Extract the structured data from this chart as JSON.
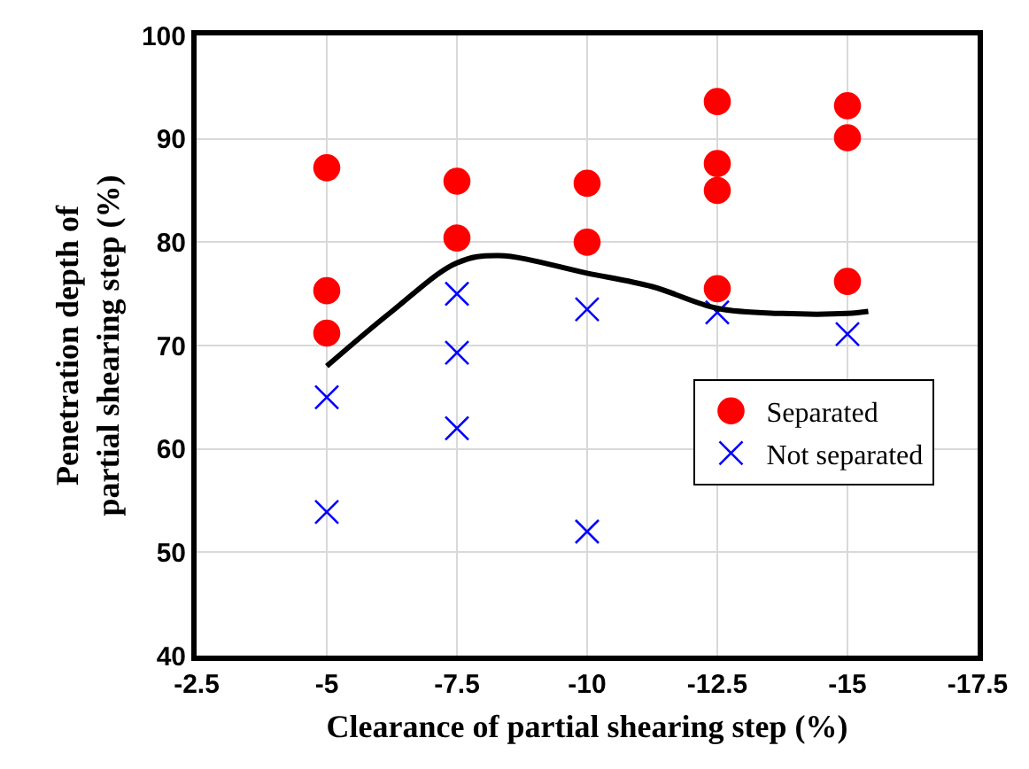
{
  "chart_data": {
    "type": "scatter",
    "xlabel": "Clearance of partial shearing step (%)",
    "ylabel": "Penetration depth of\npartial shearing step (%)",
    "xlim": [
      -2.5,
      -17.5
    ],
    "xticks": [
      -2.5,
      -5,
      -7.5,
      -10,
      -12.5,
      -15,
      -17.5
    ],
    "ylim": [
      40,
      100
    ],
    "yticks": [
      40,
      50,
      60,
      70,
      80,
      90,
      100
    ],
    "grid": true,
    "legend": "right",
    "series": [
      {
        "name": "Separated",
        "marker": "circle",
        "color": "#ff0000",
        "x": [
          -5,
          -5,
          -5,
          -7.5,
          -7.5,
          -10,
          -10,
          -12.5,
          -12.5,
          -12.5,
          -12.5,
          -15,
          -15,
          -15
        ],
        "values": [
          87.2,
          75.3,
          71.2,
          85.9,
          80.4,
          85.7,
          80.0,
          93.6,
          87.6,
          85.0,
          75.5,
          93.2,
          90.1,
          76.2
        ]
      },
      {
        "name": "Not separated",
        "marker": "cross",
        "color": "#0000ff",
        "x": [
          -5,
          -5,
          -7.5,
          -7.5,
          -7.5,
          -10,
          -10,
          -12.5,
          -15
        ],
        "values": [
          65.0,
          53.9,
          75.0,
          69.3,
          62.0,
          73.5,
          52.0,
          73.2,
          71.1
        ]
      },
      {
        "type": "line",
        "marker": "none",
        "line_style": "solid",
        "color": "#000000",
        "x": [
          -5,
          -6.25,
          -7.5,
          -8.3,
          -10,
          -11.25,
          -12.5,
          -13.75,
          -15,
          -15.4
        ],
        "values": [
          68.0,
          73.3,
          78.0,
          78.7,
          77.0,
          75.7,
          73.6,
          73.1,
          73.1,
          73.3
        ]
      }
    ]
  }
}
